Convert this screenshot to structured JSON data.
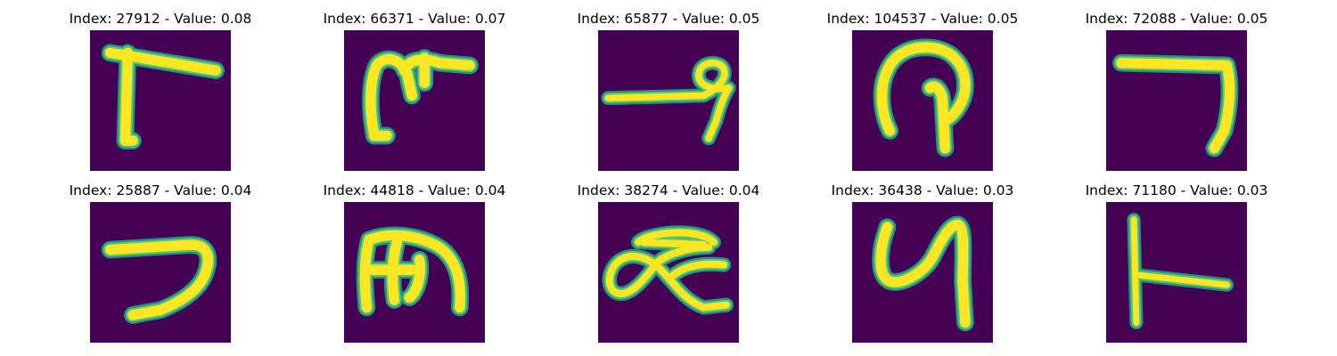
{
  "figure": {
    "background": "#440154",
    "stroke_core": "#fde725",
    "stroke_mid": "#5ec962",
    "stroke_edge": "#21918c",
    "colormap": "viridis"
  },
  "panels": [
    {
      "title": "Index: 27912 - Value: 0.08",
      "index": 27912,
      "value": 0.08,
      "glyph": "glyph-gamma"
    },
    {
      "title": "Index: 66371 - Value: 0.07",
      "index": 66371,
      "value": 0.07,
      "glyph": "glyph-m-cross"
    },
    {
      "title": "Index: 65877 - Value: 0.05",
      "index": 65877,
      "value": 0.05,
      "glyph": "glyph-line-loop"
    },
    {
      "title": "Index: 104537 - Value: 0.05",
      "index": 104537,
      "value": 0.05,
      "glyph": "glyph-hook-arch"
    },
    {
      "title": "Index: 72088 - Value: 0.05",
      "index": 72088,
      "value": 0.05,
      "glyph": "glyph-seven"
    },
    {
      "title": "Index: 25887 - Value: 0.04",
      "index": 25887,
      "value": 0.04,
      "glyph": "glyph-seven-curve"
    },
    {
      "title": "Index: 44818 - Value: 0.04",
      "index": 44818,
      "value": 0.04,
      "glyph": "glyph-m-loops"
    },
    {
      "title": "Index: 38274 - Value: 0.04",
      "index": 38274,
      "value": 0.04,
      "glyph": "glyph-alpha"
    },
    {
      "title": "Index: 36438 - Value: 0.03",
      "index": 36438,
      "value": 0.03,
      "glyph": "glyph-y"
    },
    {
      "title": "Index: 71180 - Value: 0.03",
      "index": 71180,
      "value": 0.03,
      "glyph": "glyph-t-sideways"
    }
  ]
}
